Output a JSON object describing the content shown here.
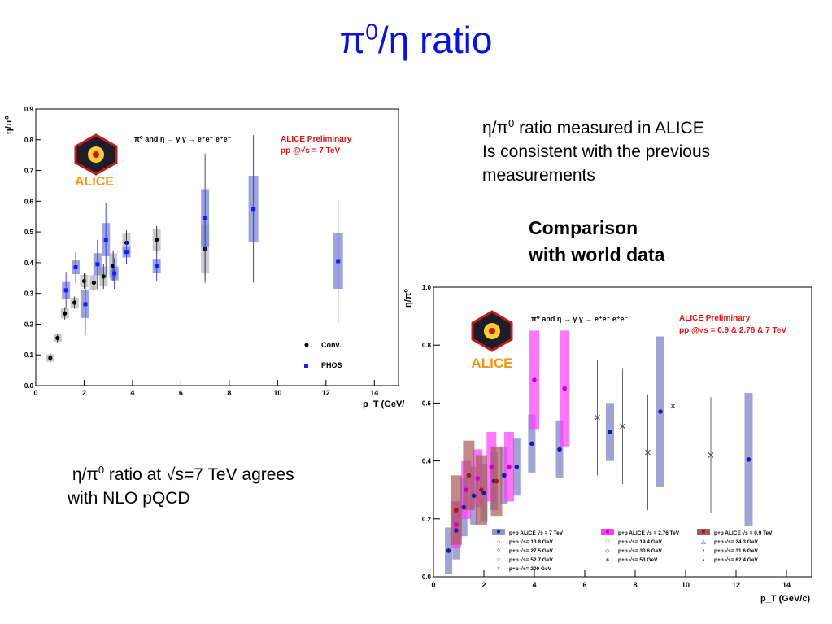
{
  "slide": {
    "title_pi": "π",
    "title_sup": "0",
    "title_rest": "/η ratio",
    "note1": {
      "eta_pi": "η/π",
      "sup": "0",
      "rest": " ratio measured in ALICE",
      "line2": "Is consistent with the previous",
      "line3": "measurements"
    },
    "comparison": {
      "line1": "Comparison",
      "line2": "with world data"
    },
    "note2": {
      "eta_pi": "η/π",
      "sup": "0",
      "rest": " ratio at √s=7 TeV agrees",
      "line2": "with NLO pQCD"
    }
  },
  "colors": {
    "title": "#0a14d9",
    "alice_pp7": "#3b44b8",
    "alice_band7": "#8f94cc",
    "alice_pp276": "#ff3cff",
    "alice_pp09": "#c0392b",
    "alice_band09": "#a85a5a",
    "preliminary": "#e0140f",
    "conv_band": "#bdbdbd"
  },
  "chart_data": [
    {
      "type": "scatter",
      "ylabel": "η/π⁰",
      "xlabel": "p_T (GeV/",
      "xlim": [
        0,
        15
      ],
      "ylim": [
        0,
        0.9
      ],
      "xticks": [
        0,
        2,
        4,
        6,
        8,
        10,
        12,
        14
      ],
      "yticks": [
        0.0,
        0.1,
        0.2,
        0.3,
        0.4,
        0.5,
        0.6,
        0.7,
        0.8,
        0.9
      ],
      "logo_text": "ALICE",
      "process_text": "π⁰ and η → γ γ → e⁺e⁻ e⁺e⁻",
      "preliminary": "ALICE Preliminary",
      "energy": "pp @√s = 7 TeV",
      "series": [
        {
          "name": "Conv.",
          "x": [
            0.6,
            0.9,
            1.2,
            1.6,
            2.0,
            2.4,
            2.8,
            3.2,
            3.75,
            5.0,
            7.0
          ],
          "y": [
            0.09,
            0.155,
            0.235,
            0.27,
            0.34,
            0.335,
            0.355,
            0.39,
            0.465,
            0.475,
            0.445
          ],
          "err": [
            0.015,
            0.015,
            0.02,
            0.02,
            0.025,
            0.03,
            0.04,
            0.05,
            0.04,
            0.045,
            0.1
          ]
        },
        {
          "name": "PHOS",
          "x": [
            1.25,
            1.65,
            2.05,
            2.55,
            2.9,
            3.25,
            3.75,
            5.0,
            7.0,
            9.0,
            12.5
          ],
          "y": [
            0.31,
            0.385,
            0.265,
            0.395,
            0.475,
            0.365,
            0.435,
            0.39,
            0.545,
            0.575,
            0.405
          ],
          "err": [
            0.06,
            0.05,
            0.1,
            0.08,
            0.12,
            0.05,
            0.04,
            0.05,
            0.21,
            0.24,
            0.2
          ]
        }
      ]
    },
    {
      "type": "scatter",
      "ylabel": "η/π⁰",
      "xlabel": "p_T (GeV/c)",
      "xlim": [
        0,
        15
      ],
      "ylim": [
        0,
        1.0
      ],
      "xticks": [
        0,
        2,
        4,
        6,
        8,
        10,
        12,
        14
      ],
      "yticks": [
        0.0,
        0.2,
        0.4,
        0.6,
        0.8,
        1.0
      ],
      "logo_text": "ALICE",
      "process_text": "π⁰ and η → γ γ → e⁺e⁻ e⁺e⁻",
      "preliminary": "ALICE Preliminary",
      "energy": "pp @√s = 0.9 & 2.76 & 7 TeV",
      "legend": [
        [
          "p+p ALICE √s = 7 TeV",
          "p+p ALICE √s = 2.76 TeV",
          "p+p ALICE √s = 0.9 TeV"
        ],
        [
          "p+p √s= 13.8 GeV",
          "p+p √s= 19.4 GeV",
          "p+p √s= 24.3 GeV"
        ],
        [
          "p+p √s= 27.5 GeV",
          "p+p √s= 30.6 GeV",
          "p+p √s= 31.6 GeV"
        ],
        [
          "p+p √s= 52.7 GeV",
          "p+p √s= 53 GeV",
          "p+p √s= 62.4 GeV"
        ],
        [
          "p+p √s= 200 GeV"
        ]
      ],
      "series": [
        {
          "name": "p+p ALICE √s = 7 TeV",
          "x": [
            0.6,
            0.9,
            1.2,
            1.6,
            2.0,
            2.4,
            2.8,
            3.3,
            3.9,
            5.0,
            7.0,
            9.0,
            12.5
          ],
          "y": [
            0.09,
            0.16,
            0.24,
            0.28,
            0.29,
            0.33,
            0.35,
            0.38,
            0.46,
            0.44,
            0.5,
            0.57,
            0.405
          ]
        },
        {
          "name": "p+p ALICE √s = 2.76 TeV",
          "x": [
            0.9,
            1.3,
            1.75,
            2.3,
            3.0,
            4.0,
            5.2
          ],
          "y": [
            0.18,
            0.3,
            0.34,
            0.38,
            0.38,
            0.68,
            0.65
          ]
        },
        {
          "name": "p+p ALICE √s = 0.9 TeV",
          "x": [
            0.9,
            1.4,
            1.9,
            2.5
          ],
          "y": [
            0.23,
            0.35,
            0.3,
            0.33
          ]
        },
        {
          "name": "p+p √s= 200 GeV",
          "x": [
            6.5,
            7.5,
            8.5,
            9.5,
            11.0
          ],
          "y": [
            0.55,
            0.52,
            0.43,
            0.59,
            0.42
          ]
        }
      ]
    }
  ]
}
